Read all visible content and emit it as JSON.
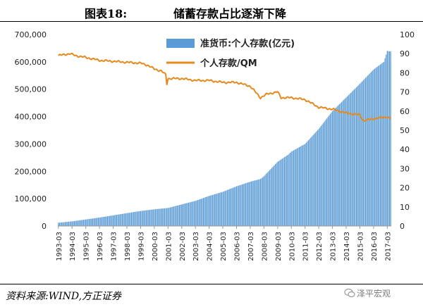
{
  "header": {
    "figure_label": "图表18:",
    "title": "储蓄存款占比逐渐下降"
  },
  "footer": {
    "source": "资料来源:WIND,方正证券",
    "watermark": "泽平宏观"
  },
  "chart_data": {
    "type": "bar+line",
    "title": "储蓄存款占比逐渐下降",
    "x_start": "1993-03",
    "x_end": "2017-06",
    "frequency": "monthly",
    "x_tick_labels": [
      "1993-03",
      "1994-03",
      "1995-03",
      "1996-03",
      "1997-03",
      "1998-03",
      "1999-03",
      "2000-03",
      "2001-03",
      "2002-03",
      "2003-03",
      "2004-03",
      "2005-03",
      "2006-03",
      "2007-03",
      "2008-03",
      "2009-03",
      "2010-03",
      "2011-03",
      "2012-03",
      "2013-03",
      "2014-03",
      "2015-03",
      "2016-03",
      "2017-03"
    ],
    "y_left": {
      "min": 0,
      "max": 700000,
      "ticks": [
        "0",
        "100,000",
        "200,000",
        "300,000",
        "400,000",
        "500,000",
        "600,000",
        "700,000"
      ]
    },
    "y_right": {
      "min": 0,
      "max": 100,
      "ticks": [
        "0",
        "10",
        "20",
        "30",
        "40",
        "50",
        "60",
        "70",
        "80",
        "90",
        "100"
      ]
    },
    "legend_placement": "top",
    "grid": false,
    "series": [
      {
        "name": "准货币:个人存款(亿元)",
        "kind": "bar",
        "axis": "left",
        "color": "#5b9bd5",
        "points": [
          [
            "1993-03",
            12000
          ],
          [
            "1994-03",
            17000
          ],
          [
            "1995-03",
            24000
          ],
          [
            "1996-03",
            31000
          ],
          [
            "1997-03",
            39000
          ],
          [
            "1998-03",
            47000
          ],
          [
            "1999-03",
            55000
          ],
          [
            "2000-03",
            61000
          ],
          [
            "2001-03",
            66000
          ],
          [
            "2002-03",
            79000
          ],
          [
            "2003-03",
            92000
          ],
          [
            "2004-03",
            110000
          ],
          [
            "2005-03",
            125000
          ],
          [
            "2006-03",
            145000
          ],
          [
            "2007-03",
            162000
          ],
          [
            "2007-12",
            172000
          ],
          [
            "2008-03",
            182000
          ],
          [
            "2009-03",
            235000
          ],
          [
            "2009-12",
            260000
          ],
          [
            "2010-03",
            272000
          ],
          [
            "2011-03",
            300000
          ],
          [
            "2012-03",
            355000
          ],
          [
            "2013-03",
            420000
          ],
          [
            "2014-03",
            470000
          ],
          [
            "2015-03",
            520000
          ],
          [
            "2016-03",
            572000
          ],
          [
            "2016-12",
            600000
          ],
          [
            "2017-03",
            640000
          ],
          [
            "2017-06",
            638000
          ]
        ]
      },
      {
        "name": "个人存款/QM",
        "kind": "line",
        "axis": "right",
        "color": "#e58a1f",
        "points": [
          [
            "1993-03",
            89
          ],
          [
            "1994-01",
            90
          ],
          [
            "1994-06",
            89
          ],
          [
            "1995-03",
            88
          ],
          [
            "1996-03",
            86.5
          ],
          [
            "1997-03",
            86
          ],
          [
            "1998-03",
            85.5
          ],
          [
            "1999-03",
            85
          ],
          [
            "1999-09",
            84
          ],
          [
            "2000-03",
            82
          ],
          [
            "2000-09",
            81
          ],
          [
            "2001-01",
            79
          ],
          [
            "2001-02",
            74
          ],
          [
            "2001-03",
            77
          ],
          [
            "2002-03",
            77
          ],
          [
            "2003-03",
            76
          ],
          [
            "2004-03",
            76
          ],
          [
            "2005-03",
            75
          ],
          [
            "2006-03",
            75
          ],
          [
            "2007-03",
            73
          ],
          [
            "2007-06",
            71
          ],
          [
            "2007-12",
            67
          ],
          [
            "2008-03",
            68
          ],
          [
            "2008-06",
            69
          ],
          [
            "2009-03",
            70
          ],
          [
            "2009-06",
            67
          ],
          [
            "2010-03",
            67
          ],
          [
            "2011-03",
            66
          ],
          [
            "2012-03",
            62
          ],
          [
            "2013-03",
            61
          ],
          [
            "2014-03",
            59
          ],
          [
            "2015-03",
            58
          ],
          [
            "2015-06",
            55
          ],
          [
            "2016-03",
            56
          ],
          [
            "2017-03",
            57
          ],
          [
            "2017-06",
            56
          ]
        ]
      }
    ]
  }
}
